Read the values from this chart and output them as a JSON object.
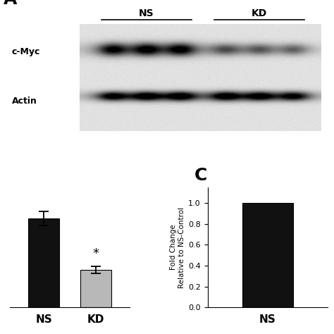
{
  "panel_A_label": "A",
  "panel_C_label": "C",
  "blot_labels": [
    "c-Myc",
    "Actin"
  ],
  "group_labels_top": [
    "NS",
    "KD"
  ],
  "bar_chart_B": {
    "categories": [
      "NS",
      "KD"
    ],
    "values": [
      1.0,
      0.42
    ],
    "errors": [
      0.08,
      0.04
    ],
    "colors": [
      "#111111",
      "#b8b8b8"
    ],
    "star_label": "*",
    "ylim": [
      0,
      1.35
    ]
  },
  "bar_chart_C": {
    "categories": [
      "NS"
    ],
    "values": [
      1.0
    ],
    "ylim": [
      0,
      1.15
    ],
    "yticks": [
      0.0,
      0.2,
      0.4,
      0.6,
      0.8,
      1.0
    ],
    "ylabel": "Fold Change\nRelative to NS-Control"
  },
  "background_color": "#ffffff",
  "blot_bg": 0.88,
  "ns_lanes": 3,
  "kd_lanes": 3
}
